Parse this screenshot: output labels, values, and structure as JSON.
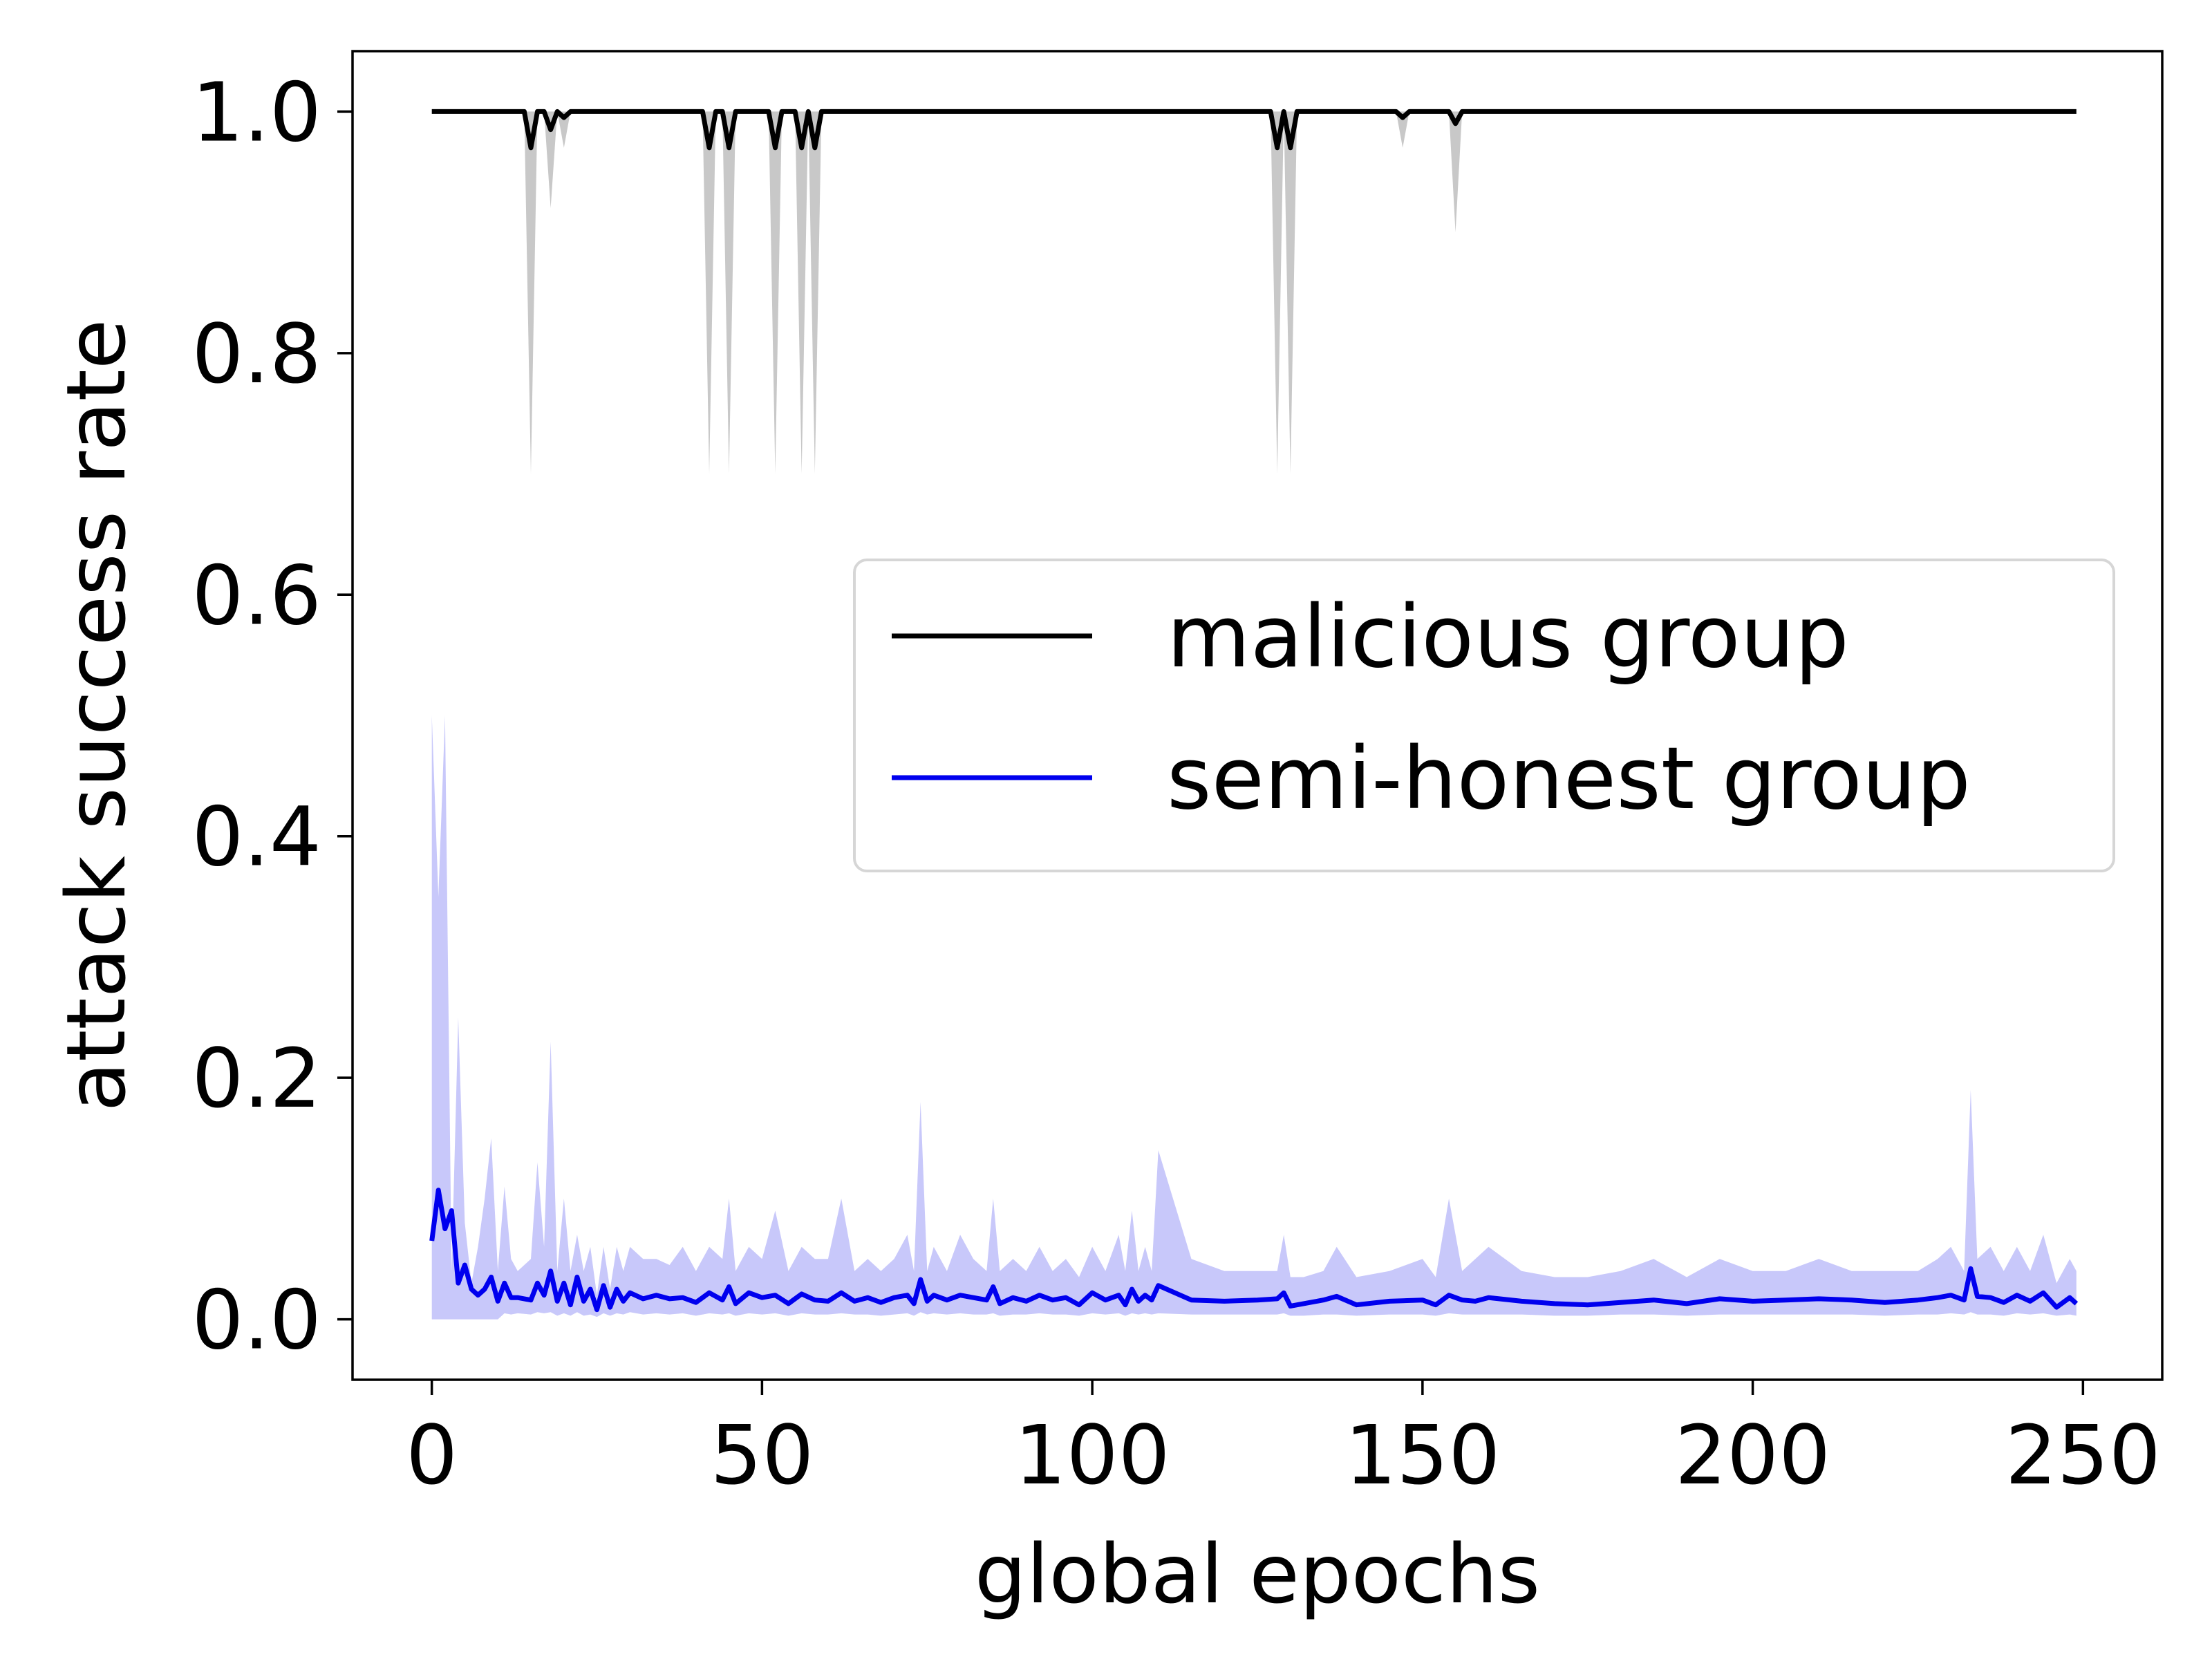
{
  "chart_data": {
    "type": "line",
    "title": "",
    "xlabel": "global epochs",
    "ylabel": "attack success rate",
    "xlim": [
      -12,
      262
    ],
    "ylim": [
      -0.05,
      1.05
    ],
    "xticks": [
      0,
      50,
      100,
      150,
      200,
      250
    ],
    "yticks": [
      0.0,
      0.2,
      0.4,
      0.6,
      0.8,
      1.0
    ],
    "xtick_labels": [
      "0",
      "50",
      "100",
      "150",
      "200",
      "250"
    ],
    "ytick_labels": [
      "0.0",
      "0.2",
      "0.4",
      "0.6",
      "0.8",
      "1.0"
    ],
    "grid": false,
    "legend_position": "center-right",
    "series": [
      {
        "name": "malicious group",
        "color": "#000000",
        "band_color": "#c8c8c8",
        "x": [
          0,
          14,
          15,
          16,
          17,
          18,
          19,
          20,
          21,
          41,
          42,
          43,
          44,
          45,
          46,
          47,
          51,
          52,
          53,
          55,
          56,
          57,
          58,
          59,
          127,
          128,
          129,
          130,
          131,
          146,
          147,
          148,
          154,
          155,
          156,
          249
        ],
        "values": [
          1.0,
          1.0,
          0.97,
          1.0,
          1.0,
          0.985,
          1.0,
          0.995,
          1.0,
          1.0,
          0.97,
          1.0,
          1.0,
          0.97,
          1.0,
          1.0,
          1.0,
          0.97,
          1.0,
          1.0,
          0.97,
          1.0,
          0.97,
          1.0,
          1.0,
          0.97,
          1.0,
          0.97,
          1.0,
          1.0,
          0.995,
          1.0,
          1.0,
          0.99,
          1.0,
          1.0
        ],
        "lower": [
          1.0,
          1.0,
          0.7,
          1.0,
          1.0,
          0.92,
          1.0,
          0.97,
          1.0,
          1.0,
          0.7,
          1.0,
          1.0,
          0.7,
          1.0,
          1.0,
          1.0,
          0.7,
          1.0,
          1.0,
          0.7,
          1.0,
          0.7,
          1.0,
          1.0,
          0.7,
          1.0,
          0.7,
          1.0,
          1.0,
          0.97,
          1.0,
          1.0,
          0.9,
          1.0,
          1.0
        ],
        "upper": [
          1.0,
          1.0,
          1.0,
          1.0,
          1.0,
          1.0,
          1.0,
          1.0,
          1.0,
          1.0,
          1.0,
          1.0,
          1.0,
          1.0,
          1.0,
          1.0,
          1.0,
          1.0,
          1.0,
          1.0,
          1.0,
          1.0,
          1.0,
          1.0,
          1.0,
          1.0,
          1.0,
          1.0,
          1.0,
          1.0,
          1.0,
          1.0,
          1.0,
          1.0,
          1.0,
          1.0
        ]
      },
      {
        "name": "semi-honest group",
        "color": "#0000ee",
        "band_color": "#c8c8fa",
        "x": [
          0,
          1,
          2,
          3,
          4,
          5,
          6,
          7,
          8,
          9,
          10,
          11,
          12,
          13,
          15,
          16,
          17,
          18,
          19,
          20,
          21,
          22,
          23,
          24,
          25,
          26,
          27,
          28,
          29,
          30,
          32,
          34,
          36,
          38,
          40,
          42,
          44,
          45,
          46,
          48,
          50,
          52,
          54,
          56,
          58,
          60,
          62,
          64,
          66,
          68,
          70,
          72,
          73,
          74,
          75,
          76,
          78,
          80,
          82,
          84,
          85,
          86,
          88,
          90,
          92,
          94,
          96,
          98,
          100,
          102,
          104,
          105,
          106,
          107,
          108,
          109,
          110,
          115,
          120,
          125,
          128,
          129,
          130,
          132,
          135,
          137,
          140,
          145,
          150,
          152,
          154,
          156,
          158,
          160,
          165,
          170,
          175,
          180,
          185,
          190,
          195,
          200,
          205,
          210,
          215,
          220,
          225,
          228,
          230,
          232,
          233,
          234,
          236,
          238,
          240,
          242,
          244,
          246,
          248,
          249
        ],
        "values": [
          0.065,
          0.107,
          0.075,
          0.09,
          0.03,
          0.045,
          0.025,
          0.02,
          0.025,
          0.035,
          0.015,
          0.03,
          0.018,
          0.018,
          0.016,
          0.03,
          0.02,
          0.04,
          0.015,
          0.03,
          0.012,
          0.035,
          0.015,
          0.025,
          0.008,
          0.028,
          0.01,
          0.025,
          0.015,
          0.022,
          0.017,
          0.02,
          0.017,
          0.018,
          0.014,
          0.022,
          0.016,
          0.027,
          0.013,
          0.022,
          0.018,
          0.02,
          0.013,
          0.021,
          0.016,
          0.015,
          0.022,
          0.015,
          0.018,
          0.014,
          0.018,
          0.02,
          0.013,
          0.033,
          0.015,
          0.02,
          0.016,
          0.02,
          0.018,
          0.016,
          0.027,
          0.013,
          0.018,
          0.015,
          0.02,
          0.016,
          0.018,
          0.012,
          0.022,
          0.016,
          0.02,
          0.012,
          0.025,
          0.015,
          0.02,
          0.016,
          0.028,
          0.016,
          0.015,
          0.016,
          0.017,
          0.022,
          0.011,
          0.013,
          0.016,
          0.019,
          0.012,
          0.015,
          0.016,
          0.012,
          0.02,
          0.016,
          0.015,
          0.018,
          0.015,
          0.013,
          0.012,
          0.014,
          0.016,
          0.013,
          0.017,
          0.015,
          0.016,
          0.017,
          0.016,
          0.014,
          0.016,
          0.018,
          0.02,
          0.016,
          0.042,
          0.019,
          0.018,
          0.014,
          0.02,
          0.015,
          0.022,
          0.01,
          0.018,
          0.013
        ],
        "lower": [
          0.0,
          0.0,
          0.0,
          0.0,
          0.0,
          0.0,
          0.0,
          0.0,
          0.0,
          0.0,
          0.0,
          0.005,
          0.004,
          0.005,
          0.004,
          0.006,
          0.005,
          0.006,
          0.003,
          0.005,
          0.003,
          0.006,
          0.003,
          0.004,
          0.002,
          0.005,
          0.003,
          0.005,
          0.004,
          0.006,
          0.004,
          0.005,
          0.004,
          0.005,
          0.003,
          0.005,
          0.004,
          0.005,
          0.003,
          0.005,
          0.004,
          0.005,
          0.003,
          0.005,
          0.004,
          0.004,
          0.005,
          0.004,
          0.004,
          0.003,
          0.004,
          0.005,
          0.003,
          0.006,
          0.004,
          0.005,
          0.004,
          0.005,
          0.004,
          0.004,
          0.005,
          0.003,
          0.004,
          0.004,
          0.005,
          0.004,
          0.004,
          0.003,
          0.005,
          0.004,
          0.005,
          0.003,
          0.005,
          0.004,
          0.005,
          0.004,
          0.005,
          0.004,
          0.004,
          0.004,
          0.004,
          0.005,
          0.003,
          0.003,
          0.004,
          0.004,
          0.003,
          0.004,
          0.004,
          0.003,
          0.005,
          0.004,
          0.004,
          0.004,
          0.004,
          0.003,
          0.003,
          0.004,
          0.004,
          0.003,
          0.004,
          0.004,
          0.004,
          0.004,
          0.004,
          0.003,
          0.004,
          0.004,
          0.005,
          0.004,
          0.006,
          0.004,
          0.004,
          0.003,
          0.005,
          0.004,
          0.005,
          0.003,
          0.004,
          0.003
        ],
        "upper": [
          0.5,
          0.35,
          0.5,
          0.04,
          0.25,
          0.08,
          0.03,
          0.06,
          0.1,
          0.15,
          0.04,
          0.11,
          0.05,
          0.04,
          0.05,
          0.13,
          0.06,
          0.23,
          0.04,
          0.1,
          0.04,
          0.07,
          0.04,
          0.06,
          0.02,
          0.06,
          0.025,
          0.06,
          0.04,
          0.06,
          0.05,
          0.05,
          0.045,
          0.06,
          0.04,
          0.06,
          0.05,
          0.1,
          0.04,
          0.06,
          0.05,
          0.09,
          0.04,
          0.06,
          0.05,
          0.05,
          0.1,
          0.04,
          0.05,
          0.04,
          0.05,
          0.07,
          0.04,
          0.18,
          0.04,
          0.06,
          0.04,
          0.07,
          0.05,
          0.04,
          0.1,
          0.04,
          0.05,
          0.04,
          0.06,
          0.04,
          0.05,
          0.035,
          0.06,
          0.04,
          0.07,
          0.04,
          0.09,
          0.04,
          0.06,
          0.04,
          0.14,
          0.05,
          0.04,
          0.04,
          0.04,
          0.07,
          0.035,
          0.035,
          0.04,
          0.06,
          0.035,
          0.04,
          0.05,
          0.035,
          0.1,
          0.04,
          0.05,
          0.06,
          0.04,
          0.035,
          0.035,
          0.04,
          0.05,
          0.035,
          0.05,
          0.04,
          0.04,
          0.05,
          0.04,
          0.04,
          0.04,
          0.05,
          0.06,
          0.04,
          0.19,
          0.05,
          0.06,
          0.04,
          0.06,
          0.04,
          0.07,
          0.03,
          0.05,
          0.04
        ]
      }
    ]
  }
}
